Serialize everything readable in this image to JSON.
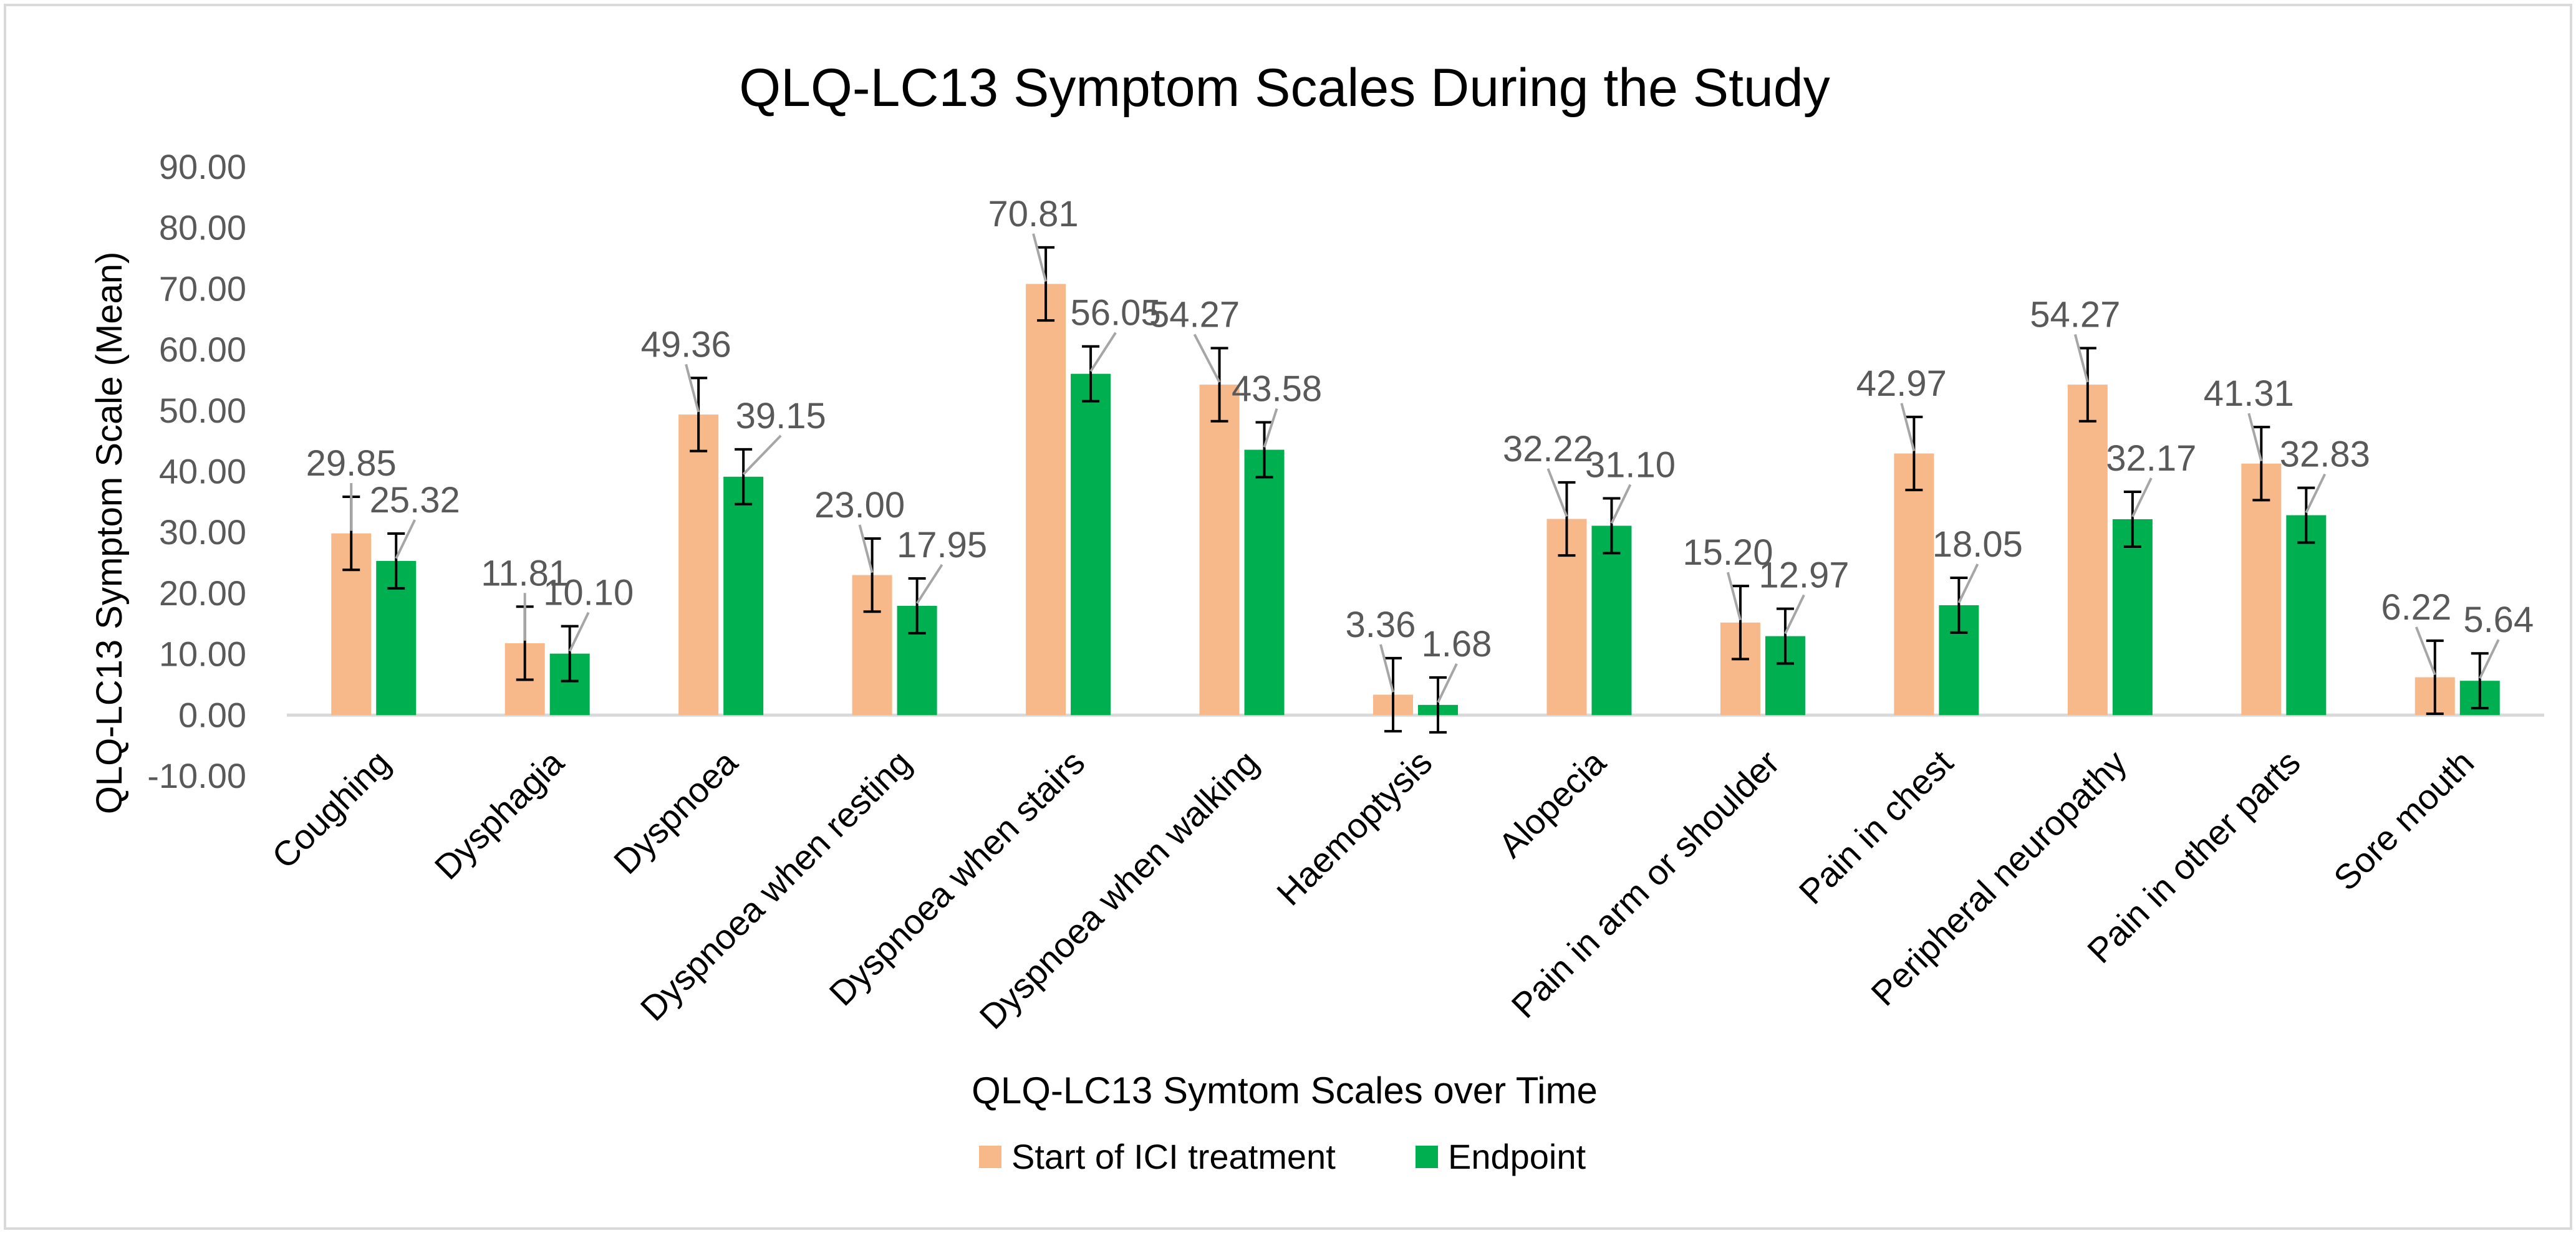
{
  "chart_data": {
    "type": "bar",
    "title": "QLQ-LC13 Symptom Scales During the Study",
    "xlabel": "QLQ-LC13 Symtom Scales over Time",
    "ylabel": "QLQ-LC13 Symptom Scale (Mean)",
    "ylim": [
      -10,
      90
    ],
    "yticks": [
      "90.00",
      "80.00",
      "70.00",
      "60.00",
      "50.00",
      "40.00",
      "30.00",
      "20.00",
      "10.00",
      "0.00",
      "-10.00"
    ],
    "ytick_values": [
      90,
      80,
      70,
      60,
      50,
      40,
      30,
      20,
      10,
      0,
      -10
    ],
    "grid": false,
    "legend_position": "bottom",
    "categories": [
      "Coughing",
      "Dysphagia",
      "Dyspnoea",
      "Dyspnoea when resting",
      "Dyspnoea when stairs",
      "Dyspnoea when walking",
      "Haemoptysis",
      "Alopecia",
      "Pain in arm or shoulder",
      "Pain in chest",
      "Peripheral neuropathy",
      "Pain in other parts",
      "Sore mouth"
    ],
    "series": [
      {
        "name": "Start of ICI treatment",
        "color": "#F8B98A",
        "values": [
          29.85,
          11.81,
          49.36,
          23.0,
          70.81,
          54.27,
          3.36,
          32.22,
          15.2,
          42.97,
          54.27,
          41.31,
          6.22
        ],
        "labels": [
          "29.85",
          "11.81",
          "49.36",
          "23.00",
          "70.81",
          "54.27",
          "3.36",
          "32.22",
          "15.20",
          "42.97",
          "54.27",
          "41.31",
          "6.22"
        ],
        "error": 6
      },
      {
        "name": "Endpoint",
        "color": "#00B050",
        "values": [
          25.32,
          10.1,
          39.15,
          17.95,
          56.05,
          43.58,
          1.68,
          31.1,
          12.97,
          18.05,
          32.17,
          32.83,
          5.64
        ],
        "labels": [
          "25.32",
          "10.10",
          "39.15",
          "17.95",
          "56.05",
          "43.58",
          "1.68",
          "31.10",
          "12.97",
          "18.05",
          "32.17",
          "32.83",
          "5.64"
        ],
        "error": 4.5
      }
    ]
  },
  "colors": {
    "axis": "#D9D9D9",
    "text": "#595959",
    "title": "#000000",
    "leader": "#A6A6A6",
    "border": "#D9D9D9"
  }
}
